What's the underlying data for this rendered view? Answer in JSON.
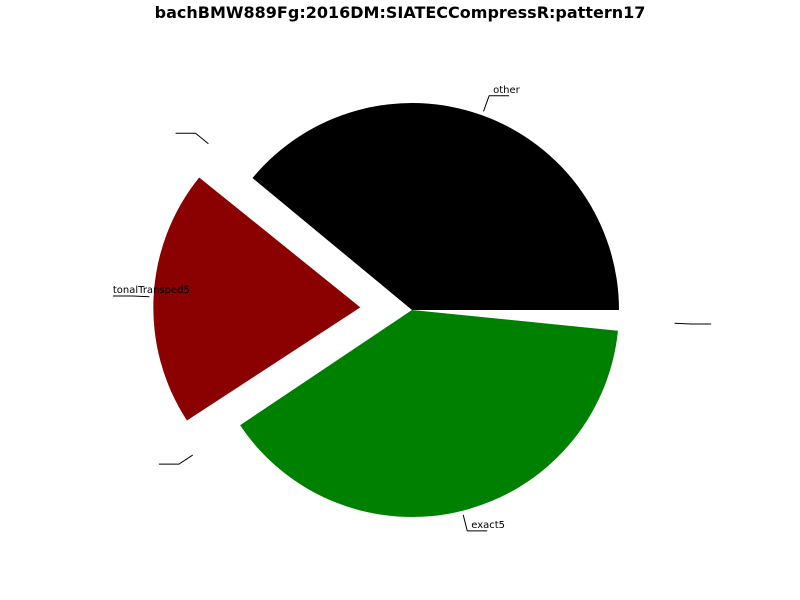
{
  "chart_data": {
    "type": "pie",
    "title": "bachBMW889Fg:2016DM:SIATECCompressR:pattern17",
    "start_angle_deg": 0,
    "direction": "counterclockwise",
    "slices": [
      {
        "label": "other",
        "value": 39.0,
        "color": "#000000",
        "exploded": false
      },
      {
        "label": "",
        "value": 0.2,
        "color": "#ffffff",
        "exploded": true
      },
      {
        "label": "tonalTransped5",
        "value": 20.0,
        "color": "#8b0000",
        "exploded": true
      },
      {
        "label": "",
        "value": 0.2,
        "color": "#ffffff",
        "exploded": true
      },
      {
        "label": "exact5",
        "value": 39.0,
        "color": "#008000",
        "exploded": false
      },
      {
        "label": "",
        "value": 1.6,
        "color": "#ffffff",
        "exploded": true
      }
    ]
  }
}
